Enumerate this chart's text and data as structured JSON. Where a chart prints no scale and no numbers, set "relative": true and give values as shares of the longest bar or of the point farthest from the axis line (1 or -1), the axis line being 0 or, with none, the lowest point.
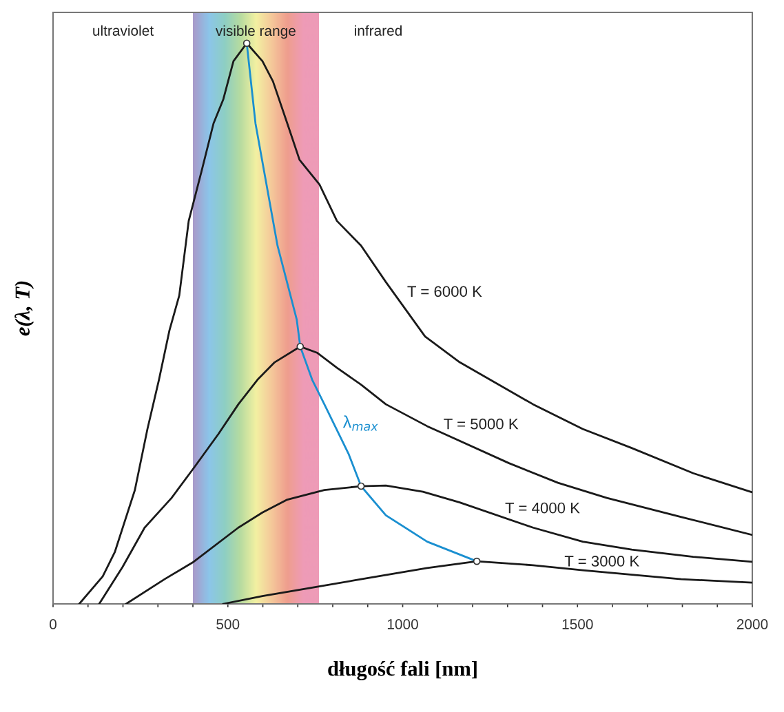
{
  "chart_data": {
    "type": "line",
    "relative": true,
    "xlabel": "długość fali [nm]",
    "ylabel": "e(λ, T)",
    "xlim": [
      0,
      2000
    ],
    "xticks": [
      0,
      {
        "value": 100,
        "label": null
      },
      {
        "value": 200,
        "label": null
      },
      {
        "value": 300,
        "label": null
      },
      {
        "value": 400,
        "label": null
      },
      500,
      {
        "value": 600,
        "label": null
      },
      {
        "value": 700,
        "label": null
      },
      {
        "value": 800,
        "label": null
      },
      {
        "value": 900,
        "label": null
      },
      1000,
      {
        "value": 1100,
        "label": null
      },
      {
        "value": 1200,
        "label": null
      },
      {
        "value": 1300,
        "label": null
      },
      {
        "value": 1400,
        "label": null
      },
      1500,
      {
        "value": 1600,
        "label": null
      },
      {
        "value": 1700,
        "label": null
      },
      {
        "value": 1800,
        "label": null
      },
      {
        "value": 1900,
        "label": null
      },
      2000
    ],
    "tick_labels": "x",
    "grid": false,
    "legend": false,
    "marker": "none",
    "line_style": "solid",
    "series": [
      {
        "name": "T = 6000 K",
        "color": "#1a1a1a",
        "x": [
          75,
          142,
          177,
          234,
          270,
          303,
          333,
          361,
          388,
          424,
          459,
          487,
          516,
          554,
          599,
          629,
          670,
          705,
          762,
          812,
          881,
          952,
          1064,
          1163,
          1373,
          1515,
          1655,
          1831,
          2000
        ],
        "values": [
          0,
          0.049,
          0.093,
          0.203,
          0.312,
          0.4,
          0.488,
          0.55,
          0.683,
          0.77,
          0.857,
          0.9,
          0.968,
          1.0,
          0.968,
          0.932,
          0.857,
          0.792,
          0.748,
          0.683,
          0.639,
          0.574,
          0.477,
          0.431,
          0.356,
          0.312,
          0.278,
          0.233,
          0.199
        ]
      },
      {
        "name": "T = 5000 K",
        "color": "#1a1a1a",
        "x": [
          132,
          199,
          262,
          339,
          402,
          473,
          530,
          585,
          634,
          707,
          755,
          812,
          881,
          952,
          1070,
          1113,
          1304,
          1444,
          1584,
          1797,
          2000
        ],
        "values": [
          0,
          0.066,
          0.136,
          0.189,
          0.242,
          0.303,
          0.356,
          0.4,
          0.431,
          0.459,
          0.448,
          0.421,
          0.391,
          0.356,
          0.317,
          0.305,
          0.251,
          0.216,
          0.189,
          0.155,
          0.123
        ]
      },
      {
        "name": "T = 4000 K",
        "color": "#1a1a1a",
        "x": [
          209,
          319,
          402,
          530,
          599,
          670,
          776,
          881,
          952,
          1058,
          1163,
          1373,
          1515,
          1655,
          1831,
          2000
        ],
        "values": [
          0,
          0.044,
          0.075,
          0.136,
          0.163,
          0.186,
          0.203,
          0.21,
          0.211,
          0.2,
          0.181,
          0.136,
          0.111,
          0.097,
          0.084,
          0.075
        ]
      },
      {
        "name": "T = 3000 K",
        "color": "#1a1a1a",
        "x": [
          487,
          599,
          741,
          881,
          1070,
          1212,
          1373,
          1515,
          1797,
          2000
        ],
        "values": [
          0,
          0.014,
          0.029,
          0.044,
          0.064,
          0.076,
          0.069,
          0.06,
          0.044,
          0.038
        ]
      },
      {
        "name": "λ$_{max}$",
        "color": "#1a8fd0",
        "x": [
          554,
          579,
          642,
          697,
          707,
          741,
          776,
          845,
          881,
          952,
          1070,
          1212
        ],
        "values": [
          1.0,
          0.857,
          0.639,
          0.507,
          0.459,
          0.4,
          0.356,
          0.268,
          0.21,
          0.158,
          0.111,
          0.076
        ]
      },
      {
        "type": "scatter",
        "marker": "circle",
        "color": "#ffffff",
        "x": [
          554,
          707,
          881,
          1212
        ],
        "values": [
          1.0,
          0.459,
          0.21,
          0.076
        ]
      }
    ],
    "bands": [
      {
        "axis": "x",
        "from": 400,
        "to": 760,
        "label": "visible range"
      }
    ],
    "annotations": [
      "ultraviolet",
      "infrared"
    ]
  }
}
